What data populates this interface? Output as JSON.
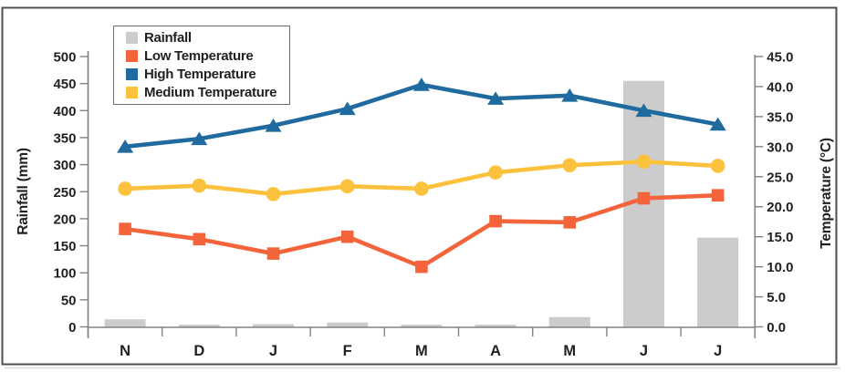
{
  "chart_data": {
    "type": "combo-bar-line",
    "categories": [
      "N",
      "D",
      "J",
      "F",
      "M",
      "A",
      "M",
      "J",
      "J"
    ],
    "series": [
      {
        "name": "Rainfall",
        "type": "bar",
        "axis": "left",
        "color": "#cccccd",
        "values": [
          14,
          4,
          5,
          8,
          4,
          4,
          18,
          455,
          165
        ]
      },
      {
        "name": "Low Temperature",
        "type": "line",
        "marker": "square",
        "axis": "right",
        "color": "#f4643a",
        "values": [
          16.3,
          14.6,
          12.2,
          15.0,
          10.0,
          17.6,
          17.4,
          21.4,
          21.9
        ]
      },
      {
        "name": "High Temperature",
        "type": "line",
        "marker": "triangle",
        "axis": "right",
        "color": "#1f6a9e",
        "values": [
          30.0,
          31.3,
          33.5,
          36.3,
          40.3,
          38.0,
          38.5,
          36.0,
          33.7
        ]
      },
      {
        "name": "Medium Temperature",
        "type": "line",
        "marker": "circle",
        "axis": "right",
        "color": "#fcc13d",
        "values": [
          23.0,
          23.5,
          22.1,
          23.4,
          23.0,
          25.7,
          26.9,
          27.5,
          26.8
        ]
      }
    ],
    "left_axis": {
      "label": "Rainfall (mm)",
      "min": 0,
      "max": 500,
      "step": 50,
      "ticks": [
        "0",
        "50",
        "100",
        "150",
        "200",
        "250",
        "300",
        "350",
        "400",
        "450",
        "500"
      ]
    },
    "right_axis": {
      "label": "Temperature (°C)",
      "min": 0,
      "max": 45,
      "step": 5,
      "ticks": [
        "0.0",
        "5.0",
        "10.0",
        "15.0",
        "20.0",
        "25.0",
        "30.0",
        "35.0",
        "40.0",
        "45.0"
      ]
    },
    "legend": {
      "position": "top-left",
      "entries": [
        "Rainfall",
        "Low Temperature",
        "High Temperature",
        "Medium Temperature"
      ]
    },
    "grid": "off",
    "colors": {
      "axis": "#808285",
      "text": "#231f20",
      "frame": "#4d4d4f"
    }
  }
}
